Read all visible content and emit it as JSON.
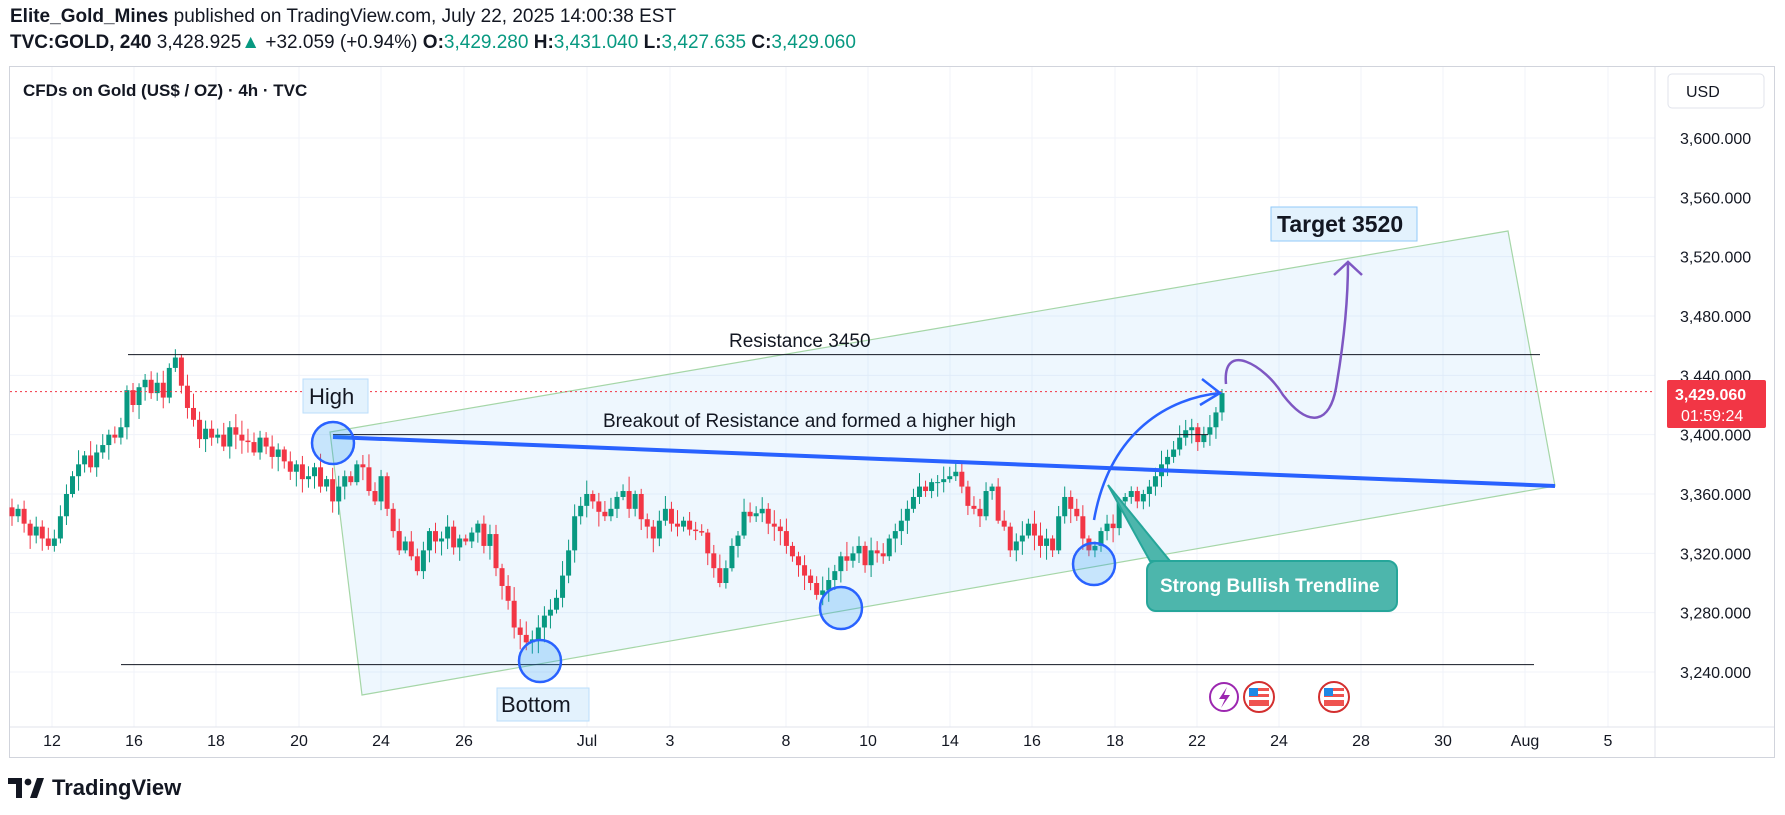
{
  "header": {
    "publisher": "Elite_Gold_Mines",
    "published_text": "published on TradingView.com, July 22, 2025 14:00:38 EST",
    "symbol": "TVC:GOLD, 240",
    "last_price": "3,428.925",
    "up_arrow": "▲",
    "change": "+32.059 (+0.94%)",
    "open_label": "O:",
    "open": "3,429.280",
    "high_label": "H:",
    "high": "3,431.040",
    "low_label": "L:",
    "low": "3,427.635",
    "close_label": "C:",
    "close": "3,429.060"
  },
  "chart_title": "CFDs on Gold (US$ / OZ) · 4h · TVC",
  "currency_button": "USD",
  "price_badge": {
    "price": "3,429.060",
    "countdown": "01:59:24"
  },
  "footer": {
    "logo_icon": "tradingview-logo-icon",
    "brand": "TradingView"
  },
  "colors": {
    "up": "#089981",
    "down": "#f23645",
    "trend": "#2962ff",
    "channel": "#a5d6a7",
    "projection": "#7e57c2",
    "callout": "#4db6ac",
    "badge": "#f23645"
  },
  "event_icons": [
    "lightning-event-icon",
    "us-flag-icon",
    "us-flag-icon"
  ],
  "chart_data": {
    "type": "candlestick",
    "title": "CFDs on Gold (US$ / OZ) · 4h · TVC",
    "ylim": [
      3210,
      3640
    ],
    "y_ticks": [
      3240,
      3280,
      3320,
      3360,
      3400,
      3440,
      3480,
      3520,
      3560,
      3600
    ],
    "y_tick_labels": [
      "3,240.000",
      "3,280.000",
      "3,320.000",
      "3,360.000",
      "3,400.000",
      "3,440.000",
      "3,480.000",
      "3,520.000",
      "3,560.000",
      "3,600.000"
    ],
    "x_range_days": [
      10.5,
      46.8
    ],
    "x_ticks": [
      {
        "day": 12,
        "label": "12"
      },
      {
        "day": 16,
        "label": "16"
      },
      {
        "day": 18,
        "label": "18"
      },
      {
        "day": 20,
        "label": "20"
      },
      {
        "day": 24,
        "label": "24"
      },
      {
        "day": 26,
        "label": "26"
      },
      {
        "day": 31,
        "label": "Jul"
      },
      {
        "day": 33,
        "label": "3"
      },
      {
        "day": 38,
        "label": "8"
      },
      {
        "day": 40,
        "label": "10"
      },
      {
        "day": 44,
        "label": "14"
      },
      {
        "day": 46,
        "label": "16"
      },
      {
        "day": 48,
        "label": "18"
      },
      {
        "day": 52,
        "label": "22"
      },
      {
        "day": 54,
        "label": "24"
      },
      {
        "day": 58,
        "label": "28"
      },
      {
        "day": 60,
        "label": "30"
      },
      {
        "day": 62,
        "label": "Aug"
      },
      {
        "day": 65,
        "label": "5"
      }
    ],
    "candles_start_day": 10.0,
    "candles_per_day": 6,
    "closes": [
      3345,
      3350,
      3340,
      3332,
      3338,
      3330,
      3325,
      3330,
      3345,
      3360,
      3372,
      3380,
      3386,
      3378,
      3388,
      3393,
      3400,
      3398,
      3405,
      3430,
      3420,
      3432,
      3437,
      3428,
      3435,
      3425,
      3445,
      3452,
      3433,
      3418,
      3410,
      3397,
      3404,
      3398,
      3400,
      3392,
      3405,
      3400,
      3396,
      3395,
      3388,
      3398,
      3392,
      3385,
      3390,
      3382,
      3375,
      3380,
      3370,
      3372,
      3378,
      3365,
      3370,
      3355,
      3365,
      3372,
      3368,
      3380,
      3378,
      3362,
      3355,
      3372,
      3350,
      3335,
      3322,
      3328,
      3318,
      3308,
      3322,
      3335,
      3328,
      3330,
      3338,
      3324,
      3330,
      3328,
      3334,
      3340,
      3325,
      3333,
      3310,
      3298,
      3288,
      3270,
      3265,
      3260,
      3262,
      3270,
      3278,
      3282,
      3290,
      3305,
      3322,
      3345,
      3352,
      3360,
      3355,
      3348,
      3345,
      3350,
      3358,
      3362,
      3350,
      3360,
      3343,
      3338,
      3330,
      3342,
      3350,
      3340,
      3338,
      3342,
      3336,
      3335,
      3334,
      3320,
      3310,
      3300,
      3310,
      3325,
      3332,
      3348,
      3345,
      3347,
      3350,
      3340,
      3338,
      3335,
      3325,
      3318,
      3312,
      3305,
      3300,
      3292,
      3295,
      3302,
      3308,
      3318,
      3315,
      3320,
      3325,
      3312,
      3322,
      3320,
      3318,
      3330,
      3335,
      3342,
      3350,
      3358,
      3365,
      3362,
      3368,
      3368,
      3370,
      3372,
      3375,
      3365,
      3352,
      3350,
      3345,
      3362,
      3365,
      3342,
      3338,
      3322,
      3328,
      3332,
      3340,
      3332,
      3325,
      3330,
      3322,
      3345,
      3358,
      3350,
      3345,
      3330,
      3322,
      3325,
      3335,
      3340,
      3337,
      3355,
      3358,
      3362,
      3355,
      3360,
      3365,
      3372,
      3380,
      3385,
      3390,
      3398,
      3403,
      3405,
      3395,
      3400,
      3405,
      3415,
      3428
    ],
    "candle_pattern": "4h OHLC candles; opens equal the previous close",
    "series": [
      {
        "name": "Resistance 3450",
        "type": "hline",
        "value": 3454,
        "from_day": 15.6,
        "to_day": 65
      },
      {
        "name": "",
        "type": "hline",
        "value": 3245,
        "from_day": 15.4,
        "to_day": 64.9
      },
      {
        "name": "Breakout of Resistance and formed a higher high",
        "type": "hline",
        "value": 3400,
        "from_day": 21.4,
        "to_day": 52.2
      },
      {
        "name": "",
        "type": "trendline",
        "points": [
          [
            21.4,
            3400
          ],
          [
            67.2,
            3366
          ]
        ]
      },
      {
        "name": "",
        "type": "channel",
        "points": [
          [
            20.7,
            3371
          ],
          [
            22.4,
            3225
          ],
          [
            67.2,
            3367
          ],
          [
            64.8,
            3540
          ]
        ]
      },
      {
        "name": "",
        "type": "projection",
        "points": [
          [
            53.0,
            3433
          ],
          [
            56.3,
            3415
          ],
          [
            58.0,
            3520
          ]
        ]
      }
    ],
    "annotations": [
      {
        "text": "High",
        "day": 21.3,
        "price": 3427
      },
      {
        "text": "Bottom",
        "day": 28.9,
        "price": 3229
      },
      {
        "text": "Target 3520",
        "day": 57.8,
        "price": 3532
      },
      {
        "text": "Strong Bullish Trendline",
        "day": 54.8,
        "price": 3313
      },
      {
        "text": "Resistance 3450",
        "day": 38.5,
        "price": 3462
      },
      {
        "text": "Breakout of Resistance and formed a higher high",
        "day": 37.5,
        "price": 3410
      }
    ],
    "circles": [
      [
        21.3,
        3399
      ],
      [
        28.9,
        3249
      ],
      [
        37.7,
        3284
      ],
      [
        47.0,
        3313
      ]
    ]
  }
}
